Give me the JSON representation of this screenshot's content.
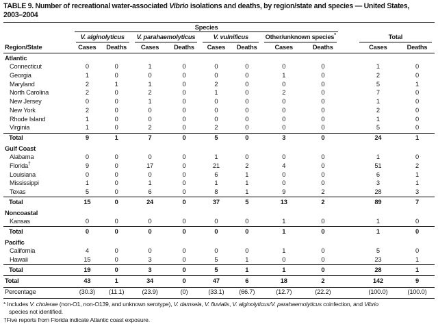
{
  "title": {
    "segments": [
      {
        "t": "TABLE 9. Number of recreational water-associated ",
        "i": false
      },
      {
        "t": "Vibrio",
        "i": true
      },
      {
        "t": " isolations and deaths, by region/state and species — United States,",
        "i": false
      },
      {
        "t": "2003–2004",
        "i": false,
        "br": true
      }
    ]
  },
  "header": {
    "species_label": "Species",
    "region_col": "Region/State",
    "cases_label": "Cases",
    "deaths_label": "Deaths",
    "groups": [
      {
        "label": "V. alginolyticus",
        "italic": true
      },
      {
        "label": "V. parahaemolyticus",
        "italic": true
      },
      {
        "label": "V. vulnificus",
        "italic": true
      },
      {
        "label": "Other/unknown species",
        "sup": "*",
        "italic": false
      },
      {
        "label": "Total",
        "italic": false
      }
    ]
  },
  "sections": [
    {
      "name": "Atlantic",
      "rows": [
        {
          "label": "Connecticut",
          "values": [
            "0",
            "0",
            "1",
            "0",
            "0",
            "0",
            "0",
            "0",
            "1",
            "0"
          ]
        },
        {
          "label": "Georgia",
          "values": [
            "1",
            "0",
            "0",
            "0",
            "0",
            "0",
            "1",
            "0",
            "2",
            "0"
          ]
        },
        {
          "label": "Maryland",
          "values": [
            "2",
            "1",
            "1",
            "0",
            "2",
            "0",
            "0",
            "0",
            "5",
            "1"
          ]
        },
        {
          "label": "North Carolina",
          "values": [
            "2",
            "0",
            "2",
            "0",
            "1",
            "0",
            "2",
            "0",
            "7",
            "0"
          ]
        },
        {
          "label": "New Jersey",
          "values": [
            "0",
            "0",
            "1",
            "0",
            "0",
            "0",
            "0",
            "0",
            "1",
            "0"
          ]
        },
        {
          "label": "New York",
          "values": [
            "2",
            "0",
            "0",
            "0",
            "0",
            "0",
            "0",
            "0",
            "2",
            "0"
          ]
        },
        {
          "label": "Rhode Island",
          "values": [
            "1",
            "0",
            "0",
            "0",
            "0",
            "0",
            "0",
            "0",
            "1",
            "0"
          ]
        },
        {
          "label": "Virginia",
          "values": [
            "1",
            "0",
            "2",
            "0",
            "2",
            "0",
            "0",
            "0",
            "5",
            "0"
          ]
        }
      ],
      "total": {
        "label": "Total",
        "values": [
          "9",
          "1",
          "7",
          "0",
          "5",
          "0",
          "3",
          "0",
          "24",
          "1"
        ]
      }
    },
    {
      "name": "Gulf Coast",
      "rows": [
        {
          "label": "Alabama",
          "values": [
            "0",
            "0",
            "0",
            "0",
            "1",
            "0",
            "0",
            "0",
            "1",
            "0"
          ]
        },
        {
          "label": "Florida",
          "sup": "†",
          "values": [
            "9",
            "0",
            "17",
            "0",
            "21",
            "2",
            "4",
            "0",
            "51",
            "2"
          ]
        },
        {
          "label": "Louisiana",
          "values": [
            "0",
            "0",
            "0",
            "0",
            "6",
            "1",
            "0",
            "0",
            "6",
            "1"
          ]
        },
        {
          "label": "Mississippi",
          "values": [
            "1",
            "0",
            "1",
            "0",
            "1",
            "1",
            "0",
            "0",
            "3",
            "1"
          ]
        },
        {
          "label": "Texas",
          "values": [
            "5",
            "0",
            "6",
            "0",
            "8",
            "1",
            "9",
            "2",
            "28",
            "3"
          ]
        }
      ],
      "total": {
        "label": "Total",
        "values": [
          "15",
          "0",
          "24",
          "0",
          "37",
          "5",
          "13",
          "2",
          "89",
          "7"
        ]
      }
    },
    {
      "name": "Noncoastal",
      "rows": [
        {
          "label": "Kansas",
          "values": [
            "0",
            "0",
            "0",
            "0",
            "0",
            "0",
            "1",
            "0",
            "1",
            "0"
          ]
        }
      ],
      "total": {
        "label": "Total",
        "values": [
          "0",
          "0",
          "0",
          "0",
          "0",
          "0",
          "1",
          "0",
          "1",
          "0"
        ]
      }
    },
    {
      "name": "Pacific",
      "rows": [
        {
          "label": "California",
          "values": [
            "4",
            "0",
            "0",
            "0",
            "0",
            "0",
            "1",
            "0",
            "5",
            "0"
          ]
        },
        {
          "label": "Hawaii",
          "values": [
            "15",
            "0",
            "3",
            "0",
            "5",
            "1",
            "0",
            "0",
            "23",
            "1"
          ]
        }
      ],
      "total": {
        "label": "Total",
        "values": [
          "19",
          "0",
          "3",
          "0",
          "5",
          "1",
          "1",
          "0",
          "28",
          "1"
        ]
      }
    }
  ],
  "grand_total": {
    "label": "Total",
    "values": [
      "43",
      "1",
      "34",
      "0",
      "47",
      "6",
      "18",
      "2",
      "142",
      "9"
    ]
  },
  "percentage": {
    "label": "Percentage",
    "values": [
      "(30.3)",
      "(11.1)",
      "(23.9)",
      "(0)",
      "(33.1)",
      "(66.7)",
      "(12.7)",
      "(22.2)",
      "(100.0)",
      "(100.0)"
    ]
  },
  "footnotes": [
    {
      "marker": "*",
      "segments": [
        {
          "t": "Includes ",
          "i": false
        },
        {
          "t": "V. cholerae",
          "i": true
        },
        {
          "t": " (non-O1, non-O139, and unknown serotype), ",
          "i": false
        },
        {
          "t": "V. damsela",
          "i": true
        },
        {
          "t": ", ",
          "i": false
        },
        {
          "t": "V. fluvialis",
          "i": true
        },
        {
          "t": ", ",
          "i": false
        },
        {
          "t": "V. alginolyticus/V. parahaemolyticus",
          "i": true
        },
        {
          "t": " coinfection, and ",
          "i": false
        },
        {
          "t": "Vibrio",
          "i": true
        },
        {
          "t": "species not identified.",
          "i": false,
          "br": true
        }
      ]
    },
    {
      "marker": "†",
      "segments": [
        {
          "t": "Five reports from Florida indicate Atlantic coast exposure.",
          "i": false
        }
      ]
    }
  ]
}
